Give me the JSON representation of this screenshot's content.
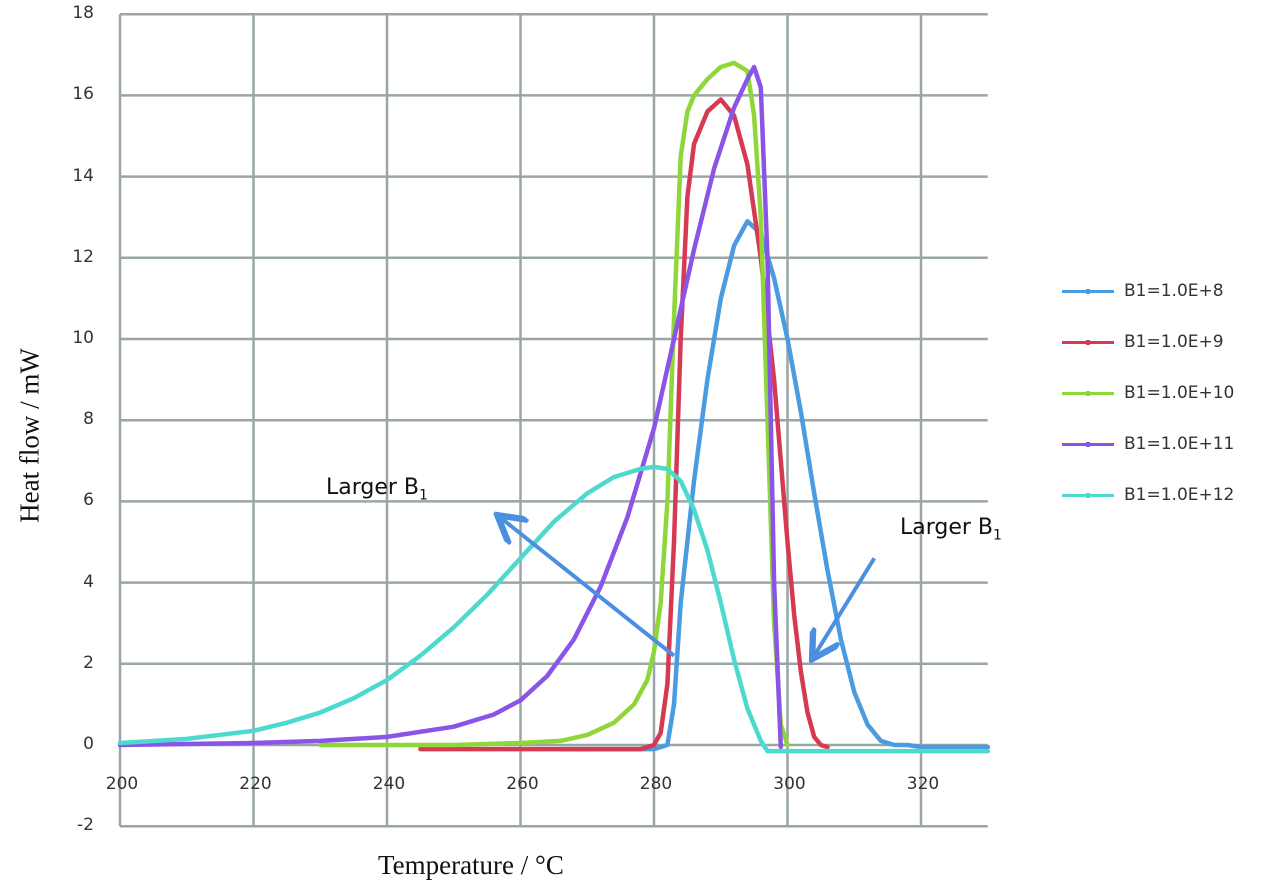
{
  "chart_data": {
    "type": "line",
    "title": "",
    "xlabel": "Temperature / °C",
    "ylabel": "Heat flow / mW",
    "xlim": [
      200,
      330
    ],
    "ylim": [
      -2,
      18
    ],
    "xticks": [
      200,
      220,
      240,
      260,
      280,
      300,
      320
    ],
    "yticks": [
      -2,
      0,
      2,
      4,
      6,
      8,
      10,
      12,
      14,
      16,
      18
    ],
    "grid": true,
    "legend_position": "right",
    "series": [
      {
        "name": "B1=1.0E+8",
        "color": "#4a9be0",
        "x": [
          266,
          280,
          282,
          283,
          284,
          286,
          288,
          290,
          292,
          294,
          296,
          298,
          300,
          302,
          304,
          306,
          308,
          310,
          312,
          314,
          316,
          318,
          320,
          330
        ],
        "y": [
          -0.1,
          -0.1,
          0.0,
          1.0,
          3.5,
          6.5,
          9.0,
          11.0,
          12.3,
          12.9,
          12.6,
          11.5,
          10.0,
          8.2,
          6.2,
          4.3,
          2.6,
          1.3,
          0.5,
          0.1,
          0.0,
          0.0,
          -0.05,
          -0.05
        ]
      },
      {
        "name": "B1=1.0E+9",
        "color": "#d63a52",
        "x": [
          245,
          260,
          270,
          278,
          280,
          281,
          282,
          283,
          284,
          285,
          286,
          288,
          290,
          292,
          294,
          296,
          298,
          299,
          300,
          301,
          302,
          303,
          304,
          305,
          306
        ],
        "y": [
          -0.1,
          -0.1,
          -0.1,
          -0.1,
          0.0,
          0.3,
          1.5,
          5.0,
          10.0,
          13.5,
          14.8,
          15.6,
          15.9,
          15.5,
          14.3,
          12.0,
          9.0,
          7.0,
          5.0,
          3.2,
          1.8,
          0.8,
          0.2,
          0.0,
          -0.05
        ]
      },
      {
        "name": "B1=1.0E+10",
        "color": "#8fd63a",
        "x": [
          230,
          250,
          260,
          266,
          270,
          274,
          277,
          279,
          280,
          281,
          282,
          283,
          284,
          285,
          286,
          288,
          290,
          292,
          294,
          295,
          296,
          297,
          298,
          299,
          300
        ],
        "y": [
          0.0,
          0.0,
          0.05,
          0.1,
          0.25,
          0.55,
          1.0,
          1.6,
          2.3,
          3.5,
          6.0,
          10.5,
          14.5,
          15.6,
          16.0,
          16.4,
          16.7,
          16.8,
          16.6,
          15.5,
          13.0,
          8.0,
          3.0,
          0.5,
          0.0
        ]
      },
      {
        "name": "B1=1.0E+11",
        "color": "#8a55e6",
        "x": [
          200,
          220,
          230,
          240,
          250,
          256,
          260,
          264,
          268,
          272,
          276,
          280,
          283,
          286,
          289,
          292,
          294,
          295,
          296,
          297,
          298,
          299
        ],
        "y": [
          0.0,
          0.05,
          0.1,
          0.2,
          0.45,
          0.75,
          1.1,
          1.7,
          2.6,
          3.9,
          5.6,
          7.8,
          10.0,
          12.2,
          14.2,
          15.7,
          16.4,
          16.7,
          16.2,
          12.0,
          4.0,
          -0.05
        ]
      },
      {
        "name": "B1=1.0E+12",
        "color": "#4dd9cf",
        "x": [
          200,
          210,
          220,
          225,
          230,
          235,
          240,
          245,
          250,
          255,
          260,
          265,
          270,
          274,
          278,
          280,
          282,
          284,
          286,
          288,
          290,
          292,
          294,
          296,
          297,
          330
        ],
        "y": [
          0.05,
          0.15,
          0.35,
          0.55,
          0.8,
          1.15,
          1.6,
          2.2,
          2.9,
          3.7,
          4.6,
          5.5,
          6.2,
          6.6,
          6.8,
          6.85,
          6.8,
          6.5,
          5.8,
          4.8,
          3.5,
          2.1,
          0.9,
          0.1,
          -0.15,
          -0.15
        ]
      }
    ],
    "annotations": [
      {
        "text": "Larger B",
        "subscript": "1",
        "position": "upper-left",
        "arrow_from": [
          283,
          2.2
        ],
        "arrow_to": [
          257,
          5.6
        ]
      },
      {
        "text": "Larger B",
        "subscript": "1",
        "position": "right",
        "arrow_from": [
          313,
          4.6
        ],
        "arrow_to": [
          304,
          2.2
        ]
      }
    ]
  },
  "legend": {
    "items": [
      {
        "label": "B1=1.0E+8",
        "color": "#4a9be0"
      },
      {
        "label": "B1=1.0E+9",
        "color": "#d63a52"
      },
      {
        "label": "B1=1.0E+10",
        "color": "#8fd63a"
      },
      {
        "label": "B1=1.0E+11",
        "color": "#8a55e6"
      },
      {
        "label": "B1=1.0E+12",
        "color": "#4dd9cf"
      }
    ]
  },
  "axes": {
    "xlabel": "Temperature / °C",
    "ylabel": "Heat flow / mW"
  },
  "annotations": {
    "left": {
      "text": "Larger B",
      "sub": "1"
    },
    "right": {
      "text": "Larger B",
      "sub": "1"
    }
  },
  "colors": {
    "grid": "#9aa6a6",
    "arrow": "#4a8fe0"
  }
}
